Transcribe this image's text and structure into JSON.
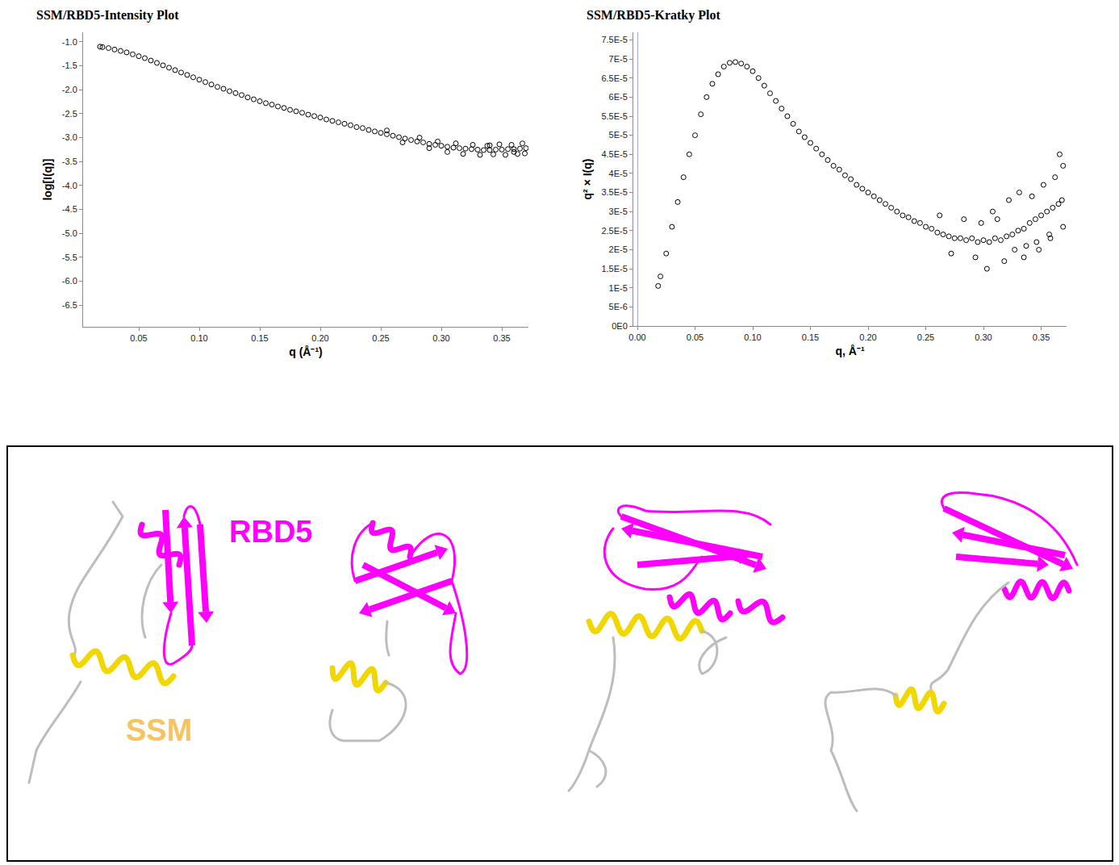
{
  "chart_data": [
    {
      "type": "scatter",
      "title": "SSM/RBD5-Intensity Plot",
      "x_label": "q (Å⁻¹)",
      "y_label": "log[I(q)]",
      "color": "#000000",
      "marker": "open-circle",
      "grid": false,
      "xlim": [
        0.004,
        0.372
      ],
      "ylim": [
        -6.95,
        -0.8
      ],
      "xticks": [
        0.05,
        {
          "value": 0.1,
          "label": "0.10"
        },
        0.15,
        {
          "value": 0.2,
          "label": "0.20"
        },
        0.25,
        {
          "value": 0.3,
          "label": "0.30"
        },
        0.35
      ],
      "yticks": [
        {
          "value": -1,
          "label": "-1.0"
        },
        -1.5,
        {
          "value": -2,
          "label": "-2.0"
        },
        -2.5,
        {
          "value": -3,
          "label": "-3.0"
        },
        -3.5,
        {
          "value": -4,
          "label": "-4.0"
        },
        -4.5,
        {
          "value": -5,
          "label": "-5.0"
        },
        -5.5,
        {
          "value": -6,
          "label": "-6.0"
        },
        -6.5
      ],
      "x": [
        0.018,
        0.02,
        0.025,
        0.03,
        0.035,
        0.04,
        0.045,
        0.05,
        0.055,
        0.06,
        0.065,
        0.07,
        0.075,
        0.08,
        0.085,
        0.09,
        0.095,
        0.1,
        0.105,
        0.11,
        0.115,
        0.12,
        0.125,
        0.13,
        0.135,
        0.14,
        0.145,
        0.15,
        0.155,
        0.16,
        0.165,
        0.17,
        0.175,
        0.18,
        0.185,
        0.19,
        0.195,
        0.2,
        0.205,
        0.21,
        0.215,
        0.22,
        0.225,
        0.23,
        0.235,
        0.24,
        0.245,
        0.25,
        0.255,
        0.26,
        0.265,
        0.27,
        0.275,
        0.28,
        0.285,
        0.29,
        0.295,
        0.3,
        0.305,
        0.31,
        0.315,
        0.32,
        0.325,
        0.33,
        0.335,
        0.34,
        0.345,
        0.35,
        0.355,
        0.36,
        0.365,
        0.37,
        0.255,
        0.268,
        0.282,
        0.29,
        0.297,
        0.305,
        0.312,
        0.318,
        0.326,
        0.332,
        0.338,
        0.343,
        0.348,
        0.353,
        0.358,
        0.363,
        0.367,
        0.369,
        0.36,
        0.34
      ],
      "values": [
        -1.1,
        -1.11,
        -1.13,
        -1.16,
        -1.19,
        -1.22,
        -1.26,
        -1.3,
        -1.34,
        -1.39,
        -1.44,
        -1.49,
        -1.54,
        -1.59,
        -1.64,
        -1.69,
        -1.74,
        -1.79,
        -1.84,
        -1.89,
        -1.94,
        -1.98,
        -2.03,
        -2.07,
        -2.11,
        -2.16,
        -2.2,
        -2.24,
        -2.28,
        -2.31,
        -2.35,
        -2.38,
        -2.42,
        -2.45,
        -2.48,
        -2.52,
        -2.55,
        -2.58,
        -2.62,
        -2.65,
        -2.68,
        -2.71,
        -2.74,
        -2.78,
        -2.8,
        -2.84,
        -2.87,
        -2.9,
        -2.93,
        -2.96,
        -2.99,
        -3.02,
        -3.05,
        -3.08,
        -3.1,
        -3.13,
        -3.15,
        -3.17,
        -3.19,
        -3.21,
        -3.22,
        -3.23,
        -3.24,
        -3.25,
        -3.26,
        -3.26,
        -3.25,
        -3.25,
        -3.24,
        -3.24,
        -3.23,
        -3.22,
        -2.85,
        -3.1,
        -3.0,
        -3.22,
        -3.08,
        -3.3,
        -3.12,
        -3.34,
        -3.15,
        -3.36,
        -3.17,
        -3.35,
        -3.14,
        -3.36,
        -3.15,
        -3.34,
        -3.12,
        -3.33,
        -3.3,
        -3.16
      ]
    },
    {
      "type": "scatter",
      "title": "SSM/RBD5-Kratky Plot",
      "x_label": "q, Å⁻¹",
      "y_label": "q² × I(q)",
      "color": "#000000",
      "marker": "open-circle",
      "grid": false,
      "xlim": [
        -0.0035,
        0.372
      ],
      "ylim": [
        0,
        7.7e-05
      ],
      "xticks": [
        {
          "value": 0,
          "label": "0.00"
        },
        0.05,
        {
          "value": 0.1,
          "label": "0.10"
        },
        0.15,
        {
          "value": 0.2,
          "label": "0.20"
        },
        0.25,
        {
          "value": 0.3,
          "label": "0.30"
        },
        0.35
      ],
      "yticks": [
        {
          "value": 0,
          "label": "0E0"
        },
        {
          "value": 5e-06,
          "label": "5E-6"
        },
        {
          "value": 1e-05,
          "label": "1E-5"
        },
        {
          "value": 1.5e-05,
          "label": "1.5E-5"
        },
        {
          "value": 2e-05,
          "label": "2E-5"
        },
        {
          "value": 2.5e-05,
          "label": "2.5E-5"
        },
        {
          "value": 3e-05,
          "label": "3E-5"
        },
        {
          "value": 3.5e-05,
          "label": "3.5E-5"
        },
        {
          "value": 4e-05,
          "label": "4E-5"
        },
        {
          "value": 4.5e-05,
          "label": "4.5E-5"
        },
        {
          "value": 5e-05,
          "label": "5E-5"
        },
        {
          "value": 5.5e-05,
          "label": "5.5E-5"
        },
        {
          "value": 6e-05,
          "label": "6E-5"
        },
        {
          "value": 6.5e-05,
          "label": "6.5E-5"
        },
        {
          "value": 7e-05,
          "label": "7E-5"
        },
        {
          "value": 7.5e-05,
          "label": "7.5E-5"
        }
      ],
      "x": [
        0.018,
        0.02,
        0.025,
        0.03,
        0.035,
        0.04,
        0.045,
        0.05,
        0.055,
        0.06,
        0.065,
        0.07,
        0.075,
        0.08,
        0.085,
        0.09,
        0.095,
        0.1,
        0.105,
        0.11,
        0.115,
        0.12,
        0.125,
        0.13,
        0.135,
        0.14,
        0.145,
        0.15,
        0.155,
        0.16,
        0.165,
        0.17,
        0.175,
        0.18,
        0.185,
        0.19,
        0.195,
        0.2,
        0.205,
        0.21,
        0.215,
        0.22,
        0.225,
        0.23,
        0.235,
        0.24,
        0.245,
        0.25,
        0.255,
        0.26,
        0.265,
        0.27,
        0.275,
        0.28,
        0.285,
        0.29,
        0.295,
        0.3,
        0.305,
        0.31,
        0.315,
        0.32,
        0.325,
        0.33,
        0.335,
        0.34,
        0.345,
        0.35,
        0.355,
        0.36,
        0.365,
        0.368,
        0.262,
        0.272,
        0.283,
        0.293,
        0.298,
        0.303,
        0.312,
        0.318,
        0.322,
        0.327,
        0.331,
        0.337,
        0.342,
        0.346,
        0.352,
        0.357,
        0.362,
        0.366,
        0.369,
        0.369,
        0.358,
        0.348,
        0.335,
        0.308
      ],
      "values": [
        1.05e-05,
        1.3e-05,
        1.9e-05,
        2.6e-05,
        3.25e-05,
        3.9e-05,
        4.5e-05,
        5e-05,
        5.55e-05,
        6e-05,
        6.35e-05,
        6.6e-05,
        6.8e-05,
        6.9e-05,
        6.92e-05,
        6.88e-05,
        6.8e-05,
        6.68e-05,
        6.5e-05,
        6.3e-05,
        6.1e-05,
        5.9e-05,
        5.7e-05,
        5.5e-05,
        5.3e-05,
        5.1e-05,
        4.95e-05,
        4.8e-05,
        4.65e-05,
        4.5e-05,
        4.35e-05,
        4.2e-05,
        4.1e-05,
        3.95e-05,
        3.85e-05,
        3.7e-05,
        3.6e-05,
        3.5e-05,
        3.4e-05,
        3.3e-05,
        3.2e-05,
        3.1e-05,
        3e-05,
        2.9e-05,
        2.85e-05,
        2.75e-05,
        2.7e-05,
        2.6e-05,
        2.55e-05,
        2.45e-05,
        2.4e-05,
        2.35e-05,
        2.3e-05,
        2.3e-05,
        2.25e-05,
        2.3e-05,
        2.2e-05,
        2.25e-05,
        2.2e-05,
        2.3e-05,
        2.25e-05,
        2.35e-05,
        2.4e-05,
        2.5e-05,
        2.55e-05,
        2.7e-05,
        2.8e-05,
        2.9e-05,
        3e-05,
        3.1e-05,
        3.2e-05,
        3.3e-05,
        2.9e-05,
        1.9e-05,
        2.8e-05,
        1.8e-05,
        2.7e-05,
        1.5e-05,
        2.8e-05,
        1.7e-05,
        3.3e-05,
        2e-05,
        3.5e-05,
        2.1e-05,
        3.4e-05,
        2.2e-05,
        3.7e-05,
        2.4e-05,
        3.9e-05,
        4.5e-05,
        2.6e-05,
        4.2e-05,
        2.3e-05,
        2e-05,
        1.8e-05,
        3e-05
      ]
    }
  ],
  "diagram": {
    "labels": [
      {
        "text": "RBD5",
        "color": "#ff00ff"
      },
      {
        "text": "SSM",
        "color": "#f7c35f"
      }
    ]
  }
}
